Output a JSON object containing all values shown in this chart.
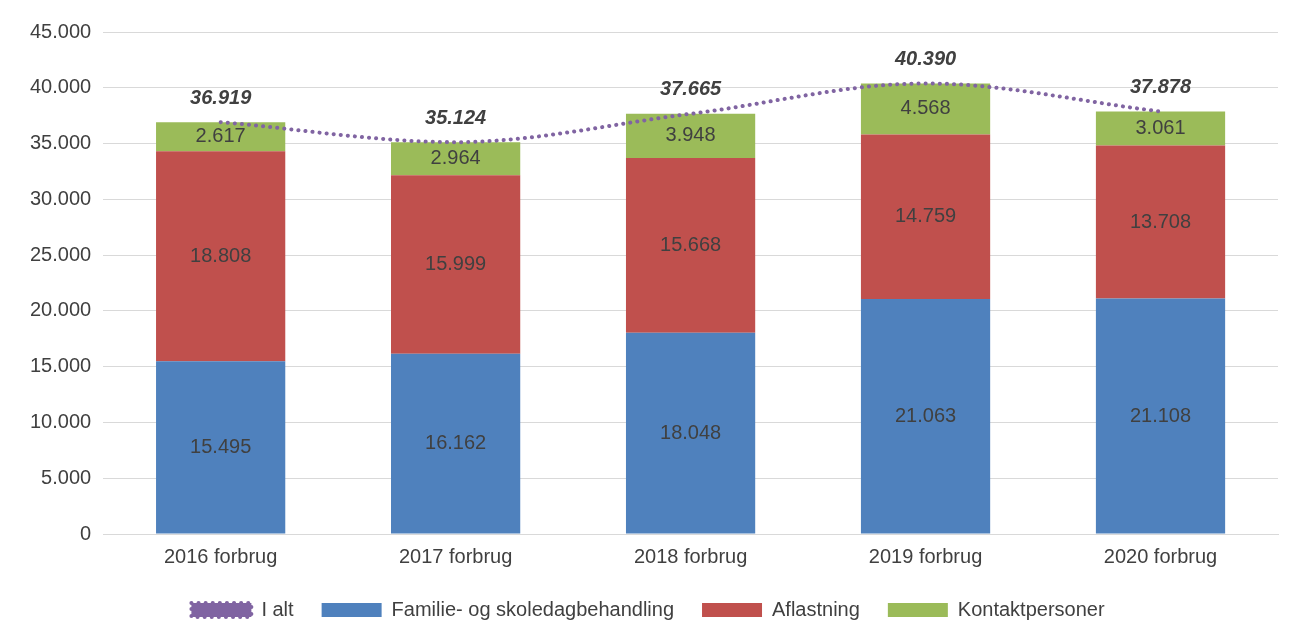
{
  "chart_data": {
    "type": "bar",
    "stacked": true,
    "grid": "y",
    "legend": "bottom",
    "categories": [
      "2016 forbrug",
      "2017 forbrug",
      "2018 forbrug",
      "2019 forbrug",
      "2020 forbrug"
    ],
    "ylim": [
      0,
      45000
    ],
    "yticks": [
      {
        "value": 0,
        "label": "0"
      },
      {
        "value": 5000,
        "label": "5.000"
      },
      {
        "value": 10000,
        "label": "10.000"
      },
      {
        "value": 15000,
        "label": "15.000"
      },
      {
        "value": 20000,
        "label": "20.000"
      },
      {
        "value": 25000,
        "label": "25.000"
      },
      {
        "value": 30000,
        "label": "30.000"
      },
      {
        "value": 35000,
        "label": "35.000"
      },
      {
        "value": 40000,
        "label": "40.000"
      },
      {
        "value": 45000,
        "label": "45.000"
      }
    ],
    "series": [
      {
        "name": "Familie- og skoledagbehandling",
        "color": "#4f81bd",
        "values": [
          15495,
          16162,
          18048,
          21063,
          21108
        ],
        "value_labels": [
          "15.495",
          "16.162",
          "18.048",
          "21.063",
          "21.108"
        ]
      },
      {
        "name": "Aflastning",
        "color": "#c0504d",
        "values": [
          18808,
          15999,
          15668,
          14759,
          13708
        ],
        "value_labels": [
          "18.808",
          "15.999",
          "15.668",
          "14.759",
          "13.708"
        ]
      },
      {
        "name": "Kontaktpersoner",
        "color": "#9bbb59",
        "values": [
          2617,
          2964,
          3948,
          4568,
          3061
        ],
        "value_labels": [
          "2.617",
          "2.964",
          "3.948",
          "4.568",
          "3.061"
        ]
      },
      {
        "name": "I alt",
        "type": "line",
        "color": "#8064a2",
        "marker": "none",
        "line_style": "dotted",
        "values": [
          36919,
          35124,
          37665,
          40390,
          37878
        ],
        "value_labels": [
          "36.919",
          "35.124",
          "37.665",
          "40.390",
          "37.878"
        ]
      }
    ]
  }
}
